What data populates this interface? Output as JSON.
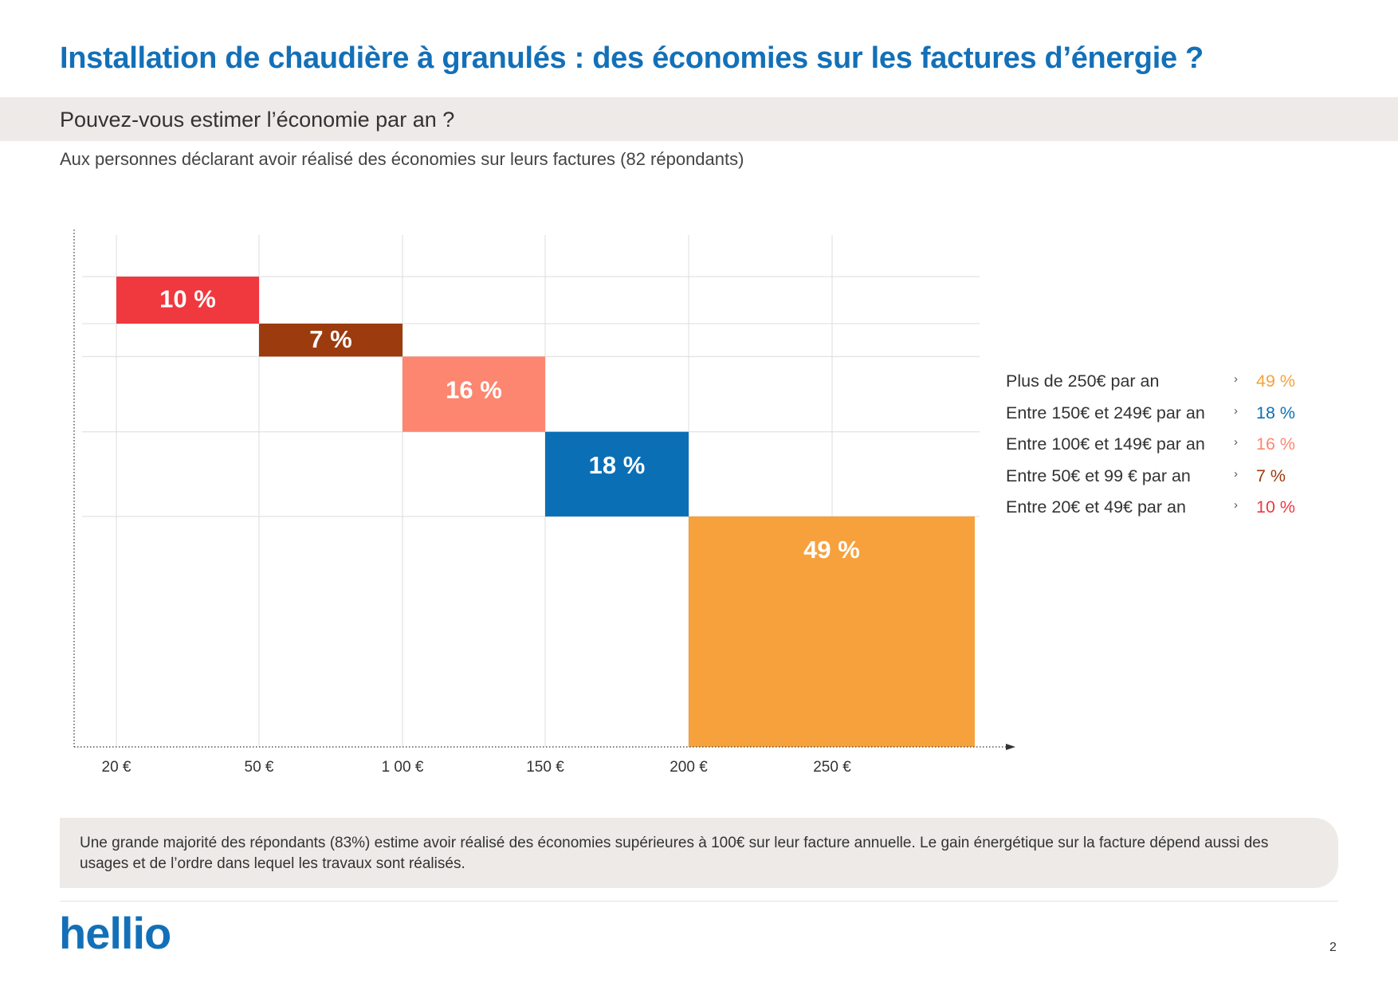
{
  "header": {
    "title": "Installation de chaudière à granulés : des économies sur les factures d’énergie ?",
    "question": "Pouvez-vous estimer l’économie par an ?",
    "audience": "Aux personnes déclarant avoir réalisé des économies sur leurs factures (82 répondants)"
  },
  "chart_data": {
    "type": "bar",
    "title": "Pouvez-vous estimer l’économie par an ?",
    "xlabel": "",
    "ylabel": "",
    "x_ticks": [
      "20 €",
      "50 €",
      "1 00 €",
      "150 €",
      "200 €",
      "250 €"
    ],
    "categories": [
      "Entre 20€ et 49€ par an",
      "Entre 50€ et 99 € par an",
      "Entre 100€ et 149€ par an",
      "Entre 150€ et 249€ par an",
      "Plus de 250€ par an"
    ],
    "values": [
      10,
      7,
      16,
      18,
      49
    ],
    "value_labels": [
      "10 %",
      "7 %",
      "16 %",
      "18 %",
      "49 %"
    ],
    "colors": [
      "#f0383f",
      "#9c3b0e",
      "#fd8671",
      "#0b6fb5",
      "#f7a13d"
    ],
    "grid": true,
    "legend": {
      "position": "right",
      "entries": [
        {
          "label": "Plus de 250€ par an",
          "value": "49 %",
          "color": "#f7a13d"
        },
        {
          "label": "Entre 150€ et 249€ par an",
          "value": "18 %",
          "color": "#0b6fb5"
        },
        {
          "label": "Entre 100€ et 149€ par an",
          "value": "16 %",
          "color": "#fd8671"
        },
        {
          "label": "Entre 50€ et 99 € par an",
          "value": "7 %",
          "color": "#9c3b0e"
        },
        {
          "label": "Entre 20€ et 49€ par an",
          "value": "10 %",
          "color": "#f0383f"
        }
      ]
    }
  },
  "note": {
    "text": "Une grande majorité des répondants (83%) estime avoir réalisé des économies supérieures à 100€ sur leur facture annuelle. Le gain énergétique sur la facture dépend aussi des usages et de l’ordre dans lequel les travaux sont réalisés."
  },
  "footer": {
    "logo": "hellio",
    "page_number": "2"
  }
}
